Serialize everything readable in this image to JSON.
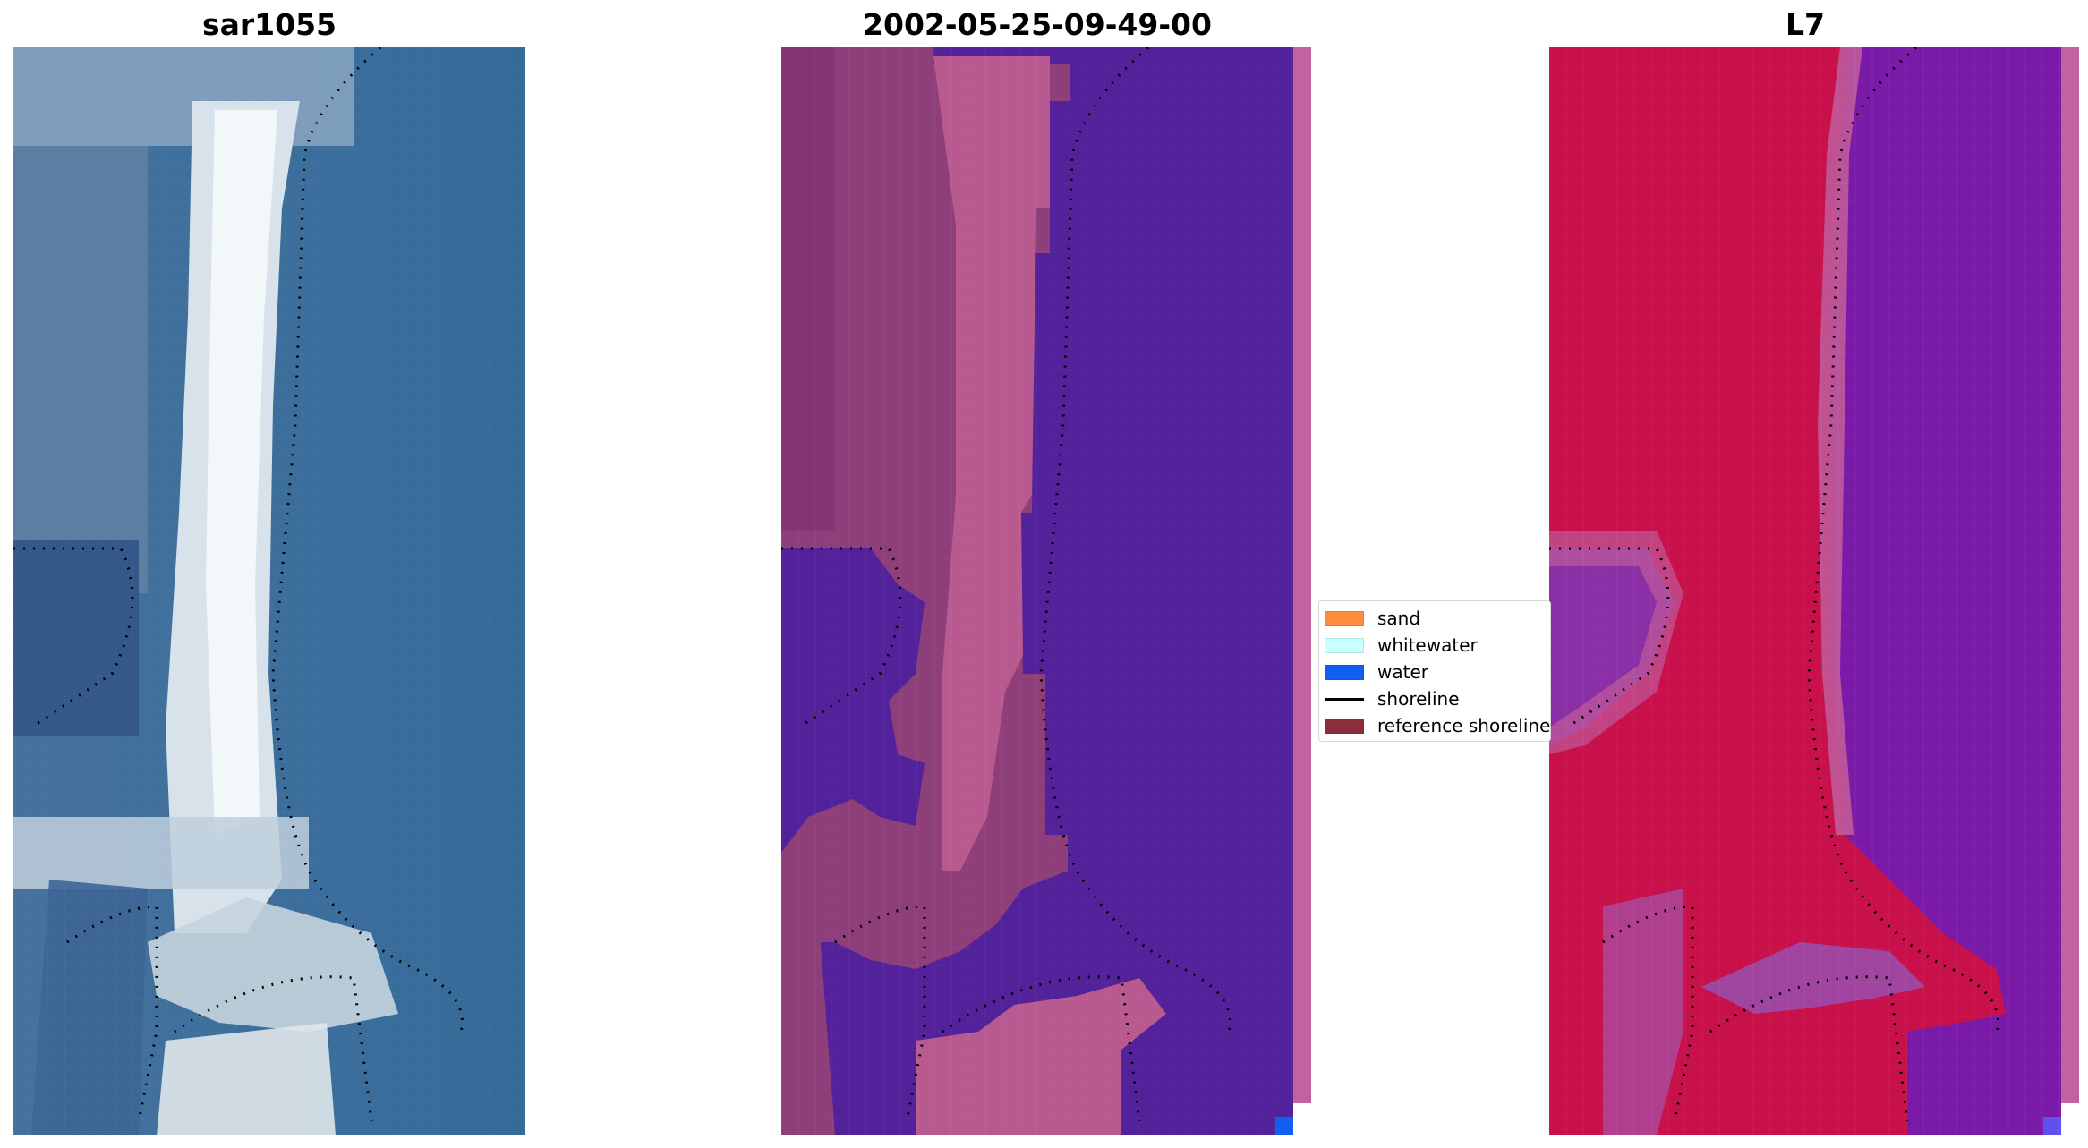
{
  "panels": [
    {
      "title": "sar1055"
    },
    {
      "title": "2002-05-25-09-49-00"
    },
    {
      "title": "L7"
    }
  ],
  "legend": {
    "items": [
      {
        "label": "sand",
        "color": "#ff8c3c",
        "kind": "patch"
      },
      {
        "label": "whitewater",
        "color": "#c8ffff",
        "kind": "patch"
      },
      {
        "label": "water",
        "color": "#1060f0",
        "kind": "patch"
      },
      {
        "label": "shoreline",
        "color": "#000000",
        "kind": "line"
      },
      {
        "label": "reference shoreline",
        "color": "#8b2e3c",
        "kind": "patch"
      }
    ]
  },
  "colors": {
    "sea_rgb": "#3a6fa0",
    "barrier_rgb": "#e8eef0",
    "classified_water": "#53229a",
    "classified_land": "#b85a90",
    "false_color_land": "#c8104a",
    "false_color_water": "#7a1aa8"
  }
}
